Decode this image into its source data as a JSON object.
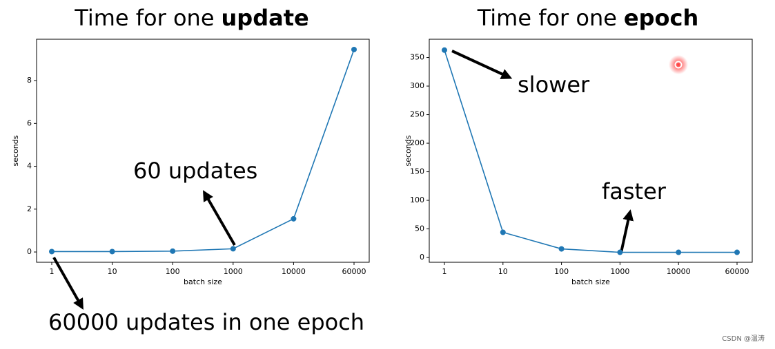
{
  "chart_data": [
    {
      "type": "line",
      "title": "Time for one",
      "title_emphasis": "update",
      "x_label": "batch size",
      "y_label": "seconds",
      "categories": [
        "1",
        "10",
        "100",
        "1000",
        "10000",
        "60000"
      ],
      "values": [
        0.02,
        0.02,
        0.04,
        0.15,
        1.55,
        9.45
      ],
      "color": "#1f77b4",
      "ylim": [
        -0.48,
        9.93
      ],
      "yticks": [
        0,
        2,
        4,
        6,
        8
      ],
      "annotations": [
        "60 updates",
        "60000 updates in one epoch"
      ]
    },
    {
      "type": "line",
      "title": "Time for one",
      "title_emphasis": "epoch",
      "x_label": "batch size",
      "y_label": "seconds",
      "categories": [
        "1",
        "10",
        "100",
        "1000",
        "10000",
        "60000"
      ],
      "values": [
        363,
        44,
        15,
        9,
        9,
        9
      ],
      "color": "#1f77b4",
      "ylim": [
        -8.4,
        382
      ],
      "yticks": [
        0,
        50,
        100,
        150,
        200,
        250,
        300,
        350
      ],
      "annotations": [
        "slower",
        "faster"
      ]
    }
  ],
  "watermark": "CSDN @温涛"
}
